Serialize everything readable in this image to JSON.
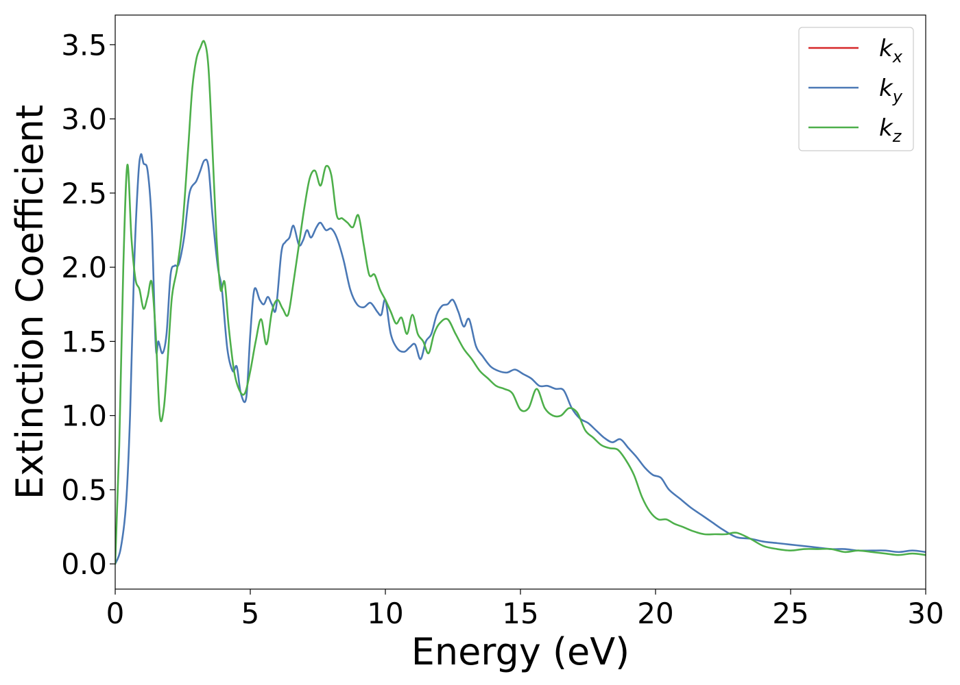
{
  "chart_data": {
    "type": "line",
    "title": "",
    "xlabel": "Energy (eV)",
    "ylabel": "Extinction Coefficient",
    "xlim": [
      0,
      30
    ],
    "ylim": [
      -0.17,
      3.7
    ],
    "xticks": [
      0,
      5,
      10,
      15,
      20,
      25,
      30
    ],
    "xtick_labels": [
      "0",
      "5",
      "10",
      "15",
      "20",
      "25",
      "30"
    ],
    "yticks": [
      0.0,
      0.5,
      1.0,
      1.5,
      2.0,
      2.5,
      3.0,
      3.5
    ],
    "ytick_labels": [
      "0.0",
      "0.5",
      "1.0",
      "1.5",
      "2.0",
      "2.5",
      "3.0",
      "3.5"
    ],
    "grid": false,
    "legend_position": "top-right",
    "series": [
      {
        "name": "k_x",
        "legend_main": "k",
        "legend_sub": "x",
        "color": "#d62728",
        "x": [
          0,
          0.2,
          0.4,
          0.55,
          0.7,
          0.85,
          0.95,
          1.05,
          1.2,
          1.35,
          1.5,
          1.6,
          1.75,
          1.9,
          2.05,
          2.2,
          2.35,
          2.55,
          2.75,
          3.0,
          3.15,
          3.3,
          3.45,
          3.6,
          3.8,
          3.95,
          4.15,
          4.35,
          4.5,
          4.65,
          4.85,
          5.0,
          5.15,
          5.35,
          5.5,
          5.65,
          5.8,
          5.95,
          6.15,
          6.3,
          6.45,
          6.6,
          6.8,
          6.95,
          7.1,
          7.25,
          7.45,
          7.6,
          7.8,
          8.0,
          8.2,
          8.45,
          8.7,
          8.95,
          9.2,
          9.45,
          9.7,
          9.85,
          10.0,
          10.2,
          10.45,
          10.7,
          10.9,
          11.1,
          11.3,
          11.5,
          11.7,
          11.9,
          12.1,
          12.3,
          12.5,
          12.7,
          12.9,
          13.1,
          13.35,
          13.6,
          13.9,
          14.2,
          14.5,
          14.8,
          15.1,
          15.4,
          15.7,
          16.0,
          16.3,
          16.6,
          16.9,
          17.2,
          17.5,
          17.8,
          18.1,
          18.4,
          18.7,
          19.0,
          19.3,
          19.6,
          19.9,
          20.2,
          20.5,
          20.9,
          21.3,
          21.7,
          22.1,
          22.5,
          23.0,
          23.5,
          24.0,
          24.5,
          25.0,
          25.5,
          26.0,
          26.5,
          27.0,
          27.5,
          28.0,
          28.5,
          29.0,
          29.5,
          30.0
        ],
        "y": [
          0.0,
          0.1,
          0.4,
          1.0,
          2.0,
          2.6,
          2.76,
          2.7,
          2.65,
          2.3,
          1.47,
          1.5,
          1.42,
          1.55,
          1.95,
          2.01,
          2.02,
          2.2,
          2.5,
          2.58,
          2.65,
          2.72,
          2.68,
          2.35,
          2.0,
          1.85,
          1.45,
          1.3,
          1.33,
          1.15,
          1.12,
          1.55,
          1.85,
          1.78,
          1.75,
          1.8,
          1.75,
          1.72,
          2.1,
          2.17,
          2.2,
          2.28,
          2.15,
          2.18,
          2.25,
          2.2,
          2.27,
          2.3,
          2.25,
          2.26,
          2.2,
          2.05,
          1.85,
          1.75,
          1.73,
          1.76,
          1.7,
          1.68,
          1.78,
          1.55,
          1.45,
          1.43,
          1.46,
          1.48,
          1.38,
          1.5,
          1.55,
          1.68,
          1.74,
          1.75,
          1.78,
          1.7,
          1.6,
          1.65,
          1.47,
          1.4,
          1.33,
          1.3,
          1.29,
          1.31,
          1.28,
          1.25,
          1.2,
          1.2,
          1.18,
          1.17,
          1.05,
          0.98,
          0.95,
          0.9,
          0.85,
          0.82,
          0.84,
          0.78,
          0.72,
          0.65,
          0.6,
          0.58,
          0.5,
          0.44,
          0.38,
          0.33,
          0.28,
          0.23,
          0.18,
          0.17,
          0.15,
          0.14,
          0.13,
          0.12,
          0.11,
          0.1,
          0.1,
          0.09,
          0.09,
          0.09,
          0.08,
          0.09,
          0.08
        ],
        "hidden": true
      },
      {
        "name": "k_y",
        "legend_main": "k",
        "legend_sub": "y",
        "color": "#4a78b5",
        "x": [
          0,
          0.2,
          0.4,
          0.55,
          0.7,
          0.85,
          0.95,
          1.05,
          1.2,
          1.35,
          1.5,
          1.6,
          1.75,
          1.9,
          2.05,
          2.2,
          2.35,
          2.55,
          2.75,
          3.0,
          3.15,
          3.3,
          3.45,
          3.6,
          3.8,
          3.95,
          4.15,
          4.35,
          4.5,
          4.65,
          4.85,
          5.0,
          5.15,
          5.35,
          5.5,
          5.65,
          5.8,
          5.95,
          6.15,
          6.3,
          6.45,
          6.6,
          6.8,
          6.95,
          7.1,
          7.25,
          7.45,
          7.6,
          7.8,
          8.0,
          8.2,
          8.45,
          8.7,
          8.95,
          9.2,
          9.45,
          9.7,
          9.85,
          10.0,
          10.2,
          10.45,
          10.7,
          10.9,
          11.1,
          11.3,
          11.5,
          11.7,
          11.9,
          12.1,
          12.3,
          12.5,
          12.7,
          12.9,
          13.1,
          13.35,
          13.6,
          13.9,
          14.2,
          14.5,
          14.8,
          15.1,
          15.4,
          15.7,
          16.0,
          16.3,
          16.6,
          16.9,
          17.2,
          17.5,
          17.8,
          18.1,
          18.4,
          18.7,
          19.0,
          19.3,
          19.6,
          19.9,
          20.2,
          20.5,
          20.9,
          21.3,
          21.7,
          22.1,
          22.5,
          23.0,
          23.5,
          24.0,
          24.5,
          25.0,
          25.5,
          26.0,
          26.5,
          27.0,
          27.5,
          28.0,
          28.5,
          29.0,
          29.5,
          30.0
        ],
        "y": [
          0.0,
          0.1,
          0.4,
          1.0,
          2.0,
          2.6,
          2.76,
          2.7,
          2.65,
          2.3,
          1.47,
          1.5,
          1.42,
          1.55,
          1.95,
          2.01,
          2.02,
          2.2,
          2.5,
          2.58,
          2.65,
          2.72,
          2.68,
          2.35,
          2.0,
          1.85,
          1.45,
          1.3,
          1.33,
          1.15,
          1.12,
          1.55,
          1.85,
          1.78,
          1.75,
          1.8,
          1.75,
          1.72,
          2.1,
          2.17,
          2.2,
          2.28,
          2.15,
          2.18,
          2.25,
          2.2,
          2.27,
          2.3,
          2.25,
          2.26,
          2.2,
          2.05,
          1.85,
          1.75,
          1.73,
          1.76,
          1.7,
          1.68,
          1.78,
          1.55,
          1.45,
          1.43,
          1.46,
          1.48,
          1.38,
          1.5,
          1.55,
          1.68,
          1.74,
          1.75,
          1.78,
          1.7,
          1.6,
          1.65,
          1.47,
          1.4,
          1.33,
          1.3,
          1.29,
          1.31,
          1.28,
          1.25,
          1.2,
          1.2,
          1.18,
          1.17,
          1.05,
          0.98,
          0.95,
          0.9,
          0.85,
          0.82,
          0.84,
          0.78,
          0.72,
          0.65,
          0.6,
          0.58,
          0.5,
          0.44,
          0.38,
          0.33,
          0.28,
          0.23,
          0.18,
          0.17,
          0.15,
          0.14,
          0.13,
          0.12,
          0.11,
          0.1,
          0.1,
          0.09,
          0.09,
          0.09,
          0.08,
          0.09,
          0.08
        ]
      },
      {
        "name": "k_z",
        "legend_main": "k",
        "legend_sub": "z",
        "color": "#4daf4a",
        "x": [
          0,
          0.15,
          0.3,
          0.45,
          0.6,
          0.75,
          0.9,
          1.05,
          1.2,
          1.35,
          1.5,
          1.65,
          1.8,
          1.95,
          2.1,
          2.3,
          2.5,
          2.7,
          2.85,
          3.0,
          3.15,
          3.3,
          3.45,
          3.6,
          3.75,
          3.9,
          4.05,
          4.2,
          4.4,
          4.6,
          4.8,
          5.0,
          5.2,
          5.4,
          5.6,
          5.8,
          6.0,
          6.2,
          6.4,
          6.6,
          6.8,
          7.0,
          7.2,
          7.4,
          7.6,
          7.8,
          8.0,
          8.2,
          8.4,
          8.6,
          8.8,
          9.0,
          9.2,
          9.4,
          9.6,
          9.8,
          10.0,
          10.2,
          10.4,
          10.6,
          10.8,
          11.0,
          11.2,
          11.4,
          11.6,
          11.8,
          12.0,
          12.3,
          12.6,
          12.9,
          13.2,
          13.5,
          13.8,
          14.1,
          14.4,
          14.7,
          15.0,
          15.3,
          15.6,
          15.9,
          16.2,
          16.5,
          16.8,
          17.1,
          17.4,
          17.7,
          18.0,
          18.3,
          18.6,
          18.9,
          19.2,
          19.5,
          19.8,
          20.1,
          20.4,
          20.7,
          21.0,
          21.4,
          21.8,
          22.2,
          22.6,
          23.0,
          23.5,
          24.0,
          24.5,
          25.0,
          25.5,
          26.0,
          26.5,
          27.0,
          27.5,
          28.0,
          28.5,
          29.0,
          29.5,
          30.0
        ],
        "y": [
          0.0,
          0.8,
          2.0,
          2.69,
          2.2,
          1.92,
          1.85,
          1.72,
          1.8,
          1.9,
          1.55,
          1.0,
          1.05,
          1.4,
          1.8,
          2.0,
          2.3,
          2.8,
          3.2,
          3.4,
          3.48,
          3.52,
          3.35,
          2.8,
          2.2,
          1.85,
          1.9,
          1.6,
          1.3,
          1.17,
          1.15,
          1.3,
          1.5,
          1.65,
          1.48,
          1.7,
          1.78,
          1.72,
          1.68,
          1.9,
          2.15,
          2.4,
          2.6,
          2.65,
          2.55,
          2.68,
          2.62,
          2.35,
          2.33,
          2.3,
          2.27,
          2.35,
          2.15,
          1.95,
          1.95,
          1.85,
          1.78,
          1.7,
          1.62,
          1.66,
          1.55,
          1.68,
          1.55,
          1.5,
          1.42,
          1.55,
          1.62,
          1.65,
          1.55,
          1.45,
          1.38,
          1.3,
          1.25,
          1.2,
          1.18,
          1.15,
          1.04,
          1.05,
          1.18,
          1.05,
          1.0,
          1.0,
          1.05,
          1.02,
          0.9,
          0.85,
          0.8,
          0.78,
          0.77,
          0.7,
          0.6,
          0.45,
          0.35,
          0.3,
          0.3,
          0.27,
          0.25,
          0.22,
          0.2,
          0.2,
          0.2,
          0.21,
          0.17,
          0.12,
          0.1,
          0.09,
          0.1,
          0.1,
          0.1,
          0.08,
          0.09,
          0.08,
          0.07,
          0.06,
          0.07,
          0.06
        ]
      }
    ]
  }
}
